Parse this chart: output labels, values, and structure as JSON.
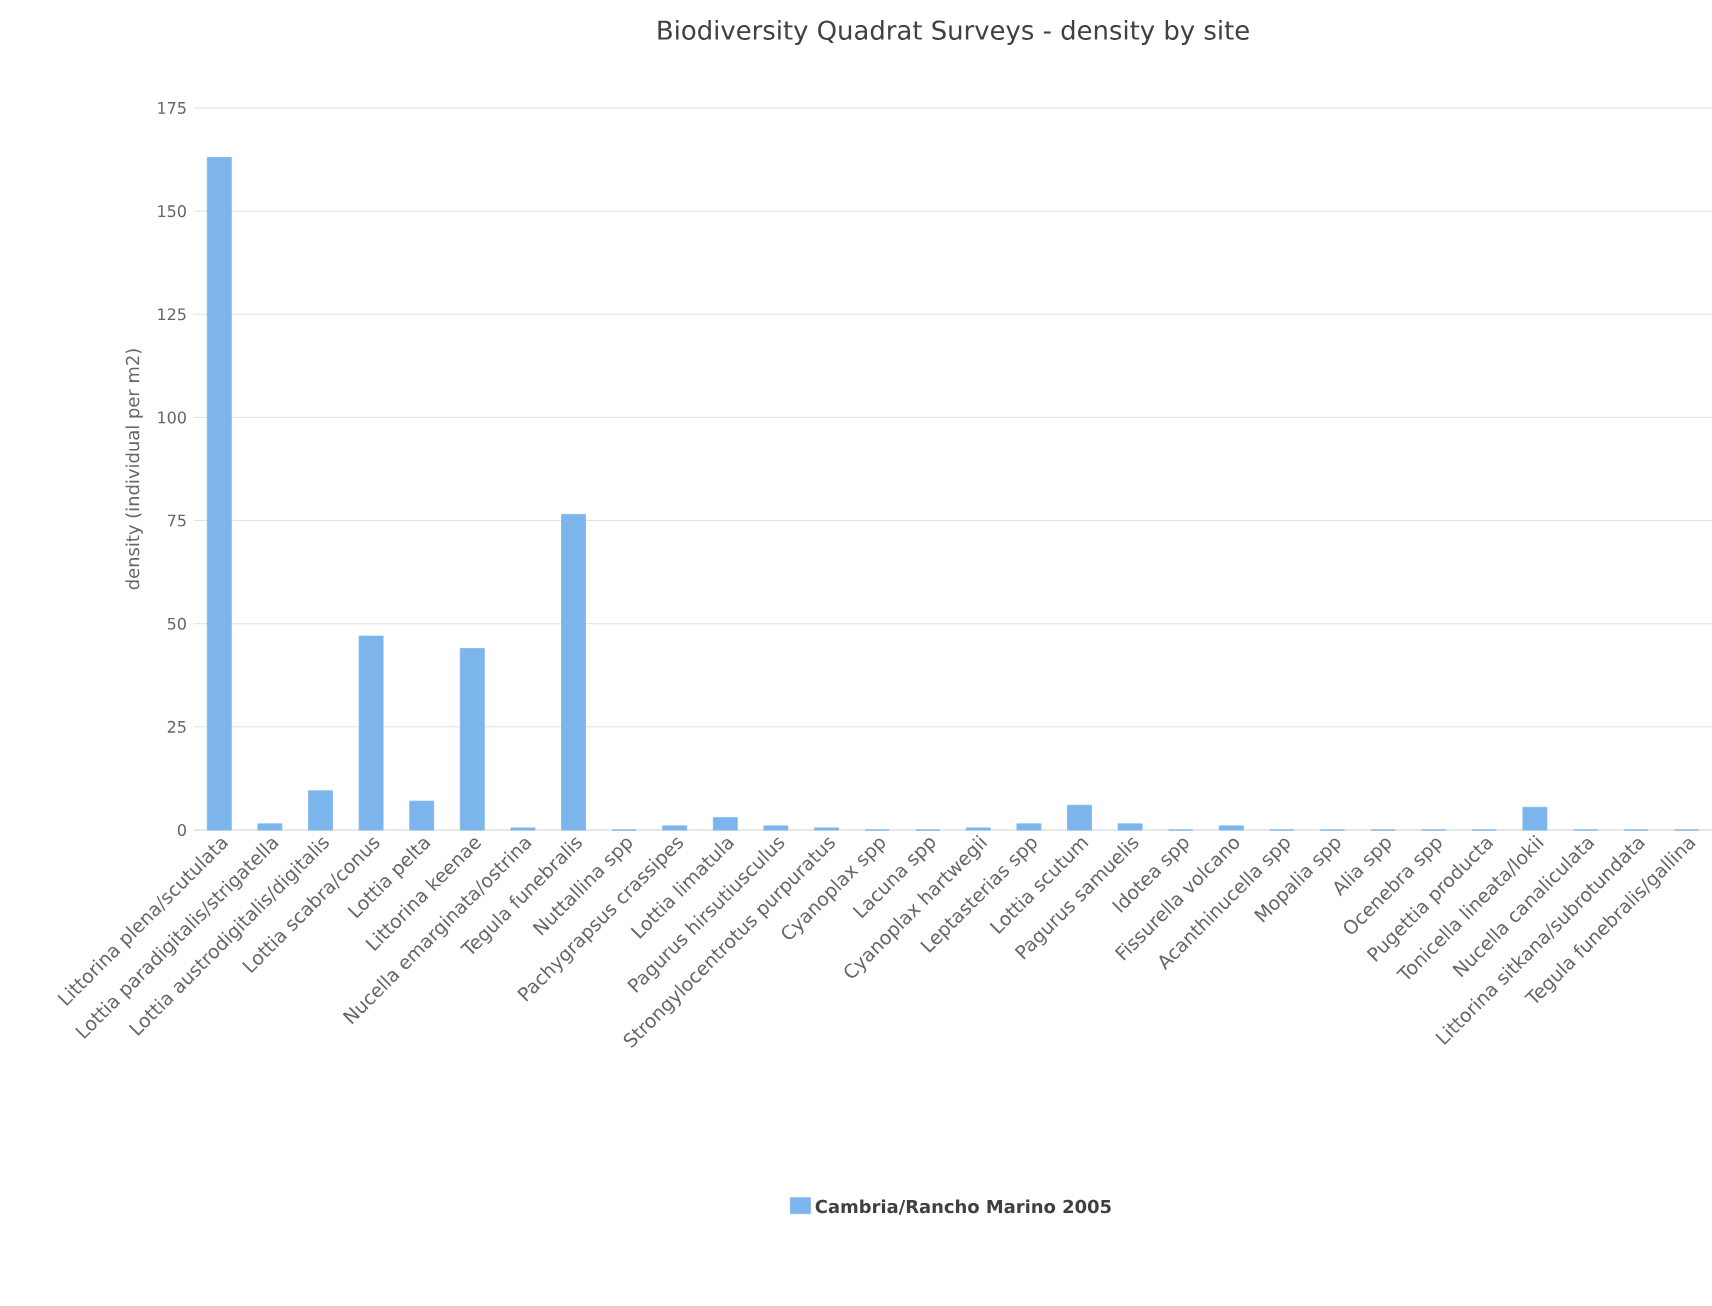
{
  "chart_data": {
    "type": "bar",
    "title": "Biodiversity Quadrat Surveys - density by site",
    "ylabel": "density (individual per m2)",
    "categories": [
      "Littorina plena/scutulata",
      "Lottia paradigitalis/strigatella",
      "Lottia austrodigitalis/digitalis",
      "Lottia scabra/conus",
      "Lottia pelta",
      "Littorina keenae",
      "Nucella emarginata/ostrina",
      "Tegula funebralis",
      "Nuttallina spp",
      "Pachygrapsus crassipes",
      "Lottia limatula",
      "Pagurus hirsutiusculus",
      "Strongylocentrotus purpuratus",
      "Cyanoplax spp",
      "Lacuna spp",
      "Cyanoplax hartwegii",
      "Leptasterias spp",
      "Lottia scutum",
      "Pagurus samuelis",
      "Idotea spp",
      "Fissurella volcano",
      "Acanthinucella spp",
      "Mopalia spp",
      "Alia spp",
      "Ocenebra spp",
      "Pugettia producta",
      "Tonicella lineata/lokii",
      "Nucella canaliculata",
      "Littorina sitkana/subrotundata",
      "Tegula funebralis/gallina"
    ],
    "series": [
      {
        "name": "Cambria/Rancho Marino 2005",
        "color": "#7cb5ec",
        "values": [
          163,
          1.5,
          9.5,
          47,
          7,
          44,
          0.5,
          76.5,
          0,
          1,
          3,
          1,
          0.5,
          0,
          0,
          0.5,
          1.5,
          6,
          1.5,
          0,
          1,
          0,
          0,
          0,
          0,
          0,
          5.5,
          0,
          0,
          0
        ]
      }
    ],
    "ylim": [
      0,
      175
    ],
    "yticks": [
      0,
      25,
      50,
      75,
      100,
      125,
      150,
      175
    ],
    "grid": "y",
    "legend": "bottom"
  }
}
